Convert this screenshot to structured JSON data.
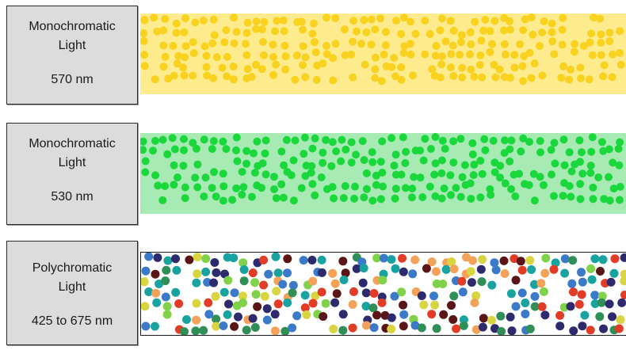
{
  "panels": [
    {
      "line1": "Monochromatic",
      "line2": "Light",
      "range": "570 nm",
      "band_color": "#fdeb8d",
      "dot_colors": [
        "#f8d21f"
      ],
      "dot_density": 1.0
    },
    {
      "line1": "Monochromatic",
      "line2": "Light",
      "range": "530 nm",
      "band_color": "#a7eab3",
      "dot_colors": [
        "#1ad73b"
      ],
      "dot_density": 1.0
    },
    {
      "line1": "Polychromatic",
      "line2": "Light",
      "range": "425 to 675 nm",
      "band_color": "#ffffff",
      "dot_colors": [
        "#2f8f57",
        "#e23b26",
        "#f4a15a",
        "#2e2a6e",
        "#5a1616",
        "#d8d540",
        "#19a3a0",
        "#7fd24a",
        "#3a7ac8"
      ],
      "dot_density": 1.0
    }
  ]
}
